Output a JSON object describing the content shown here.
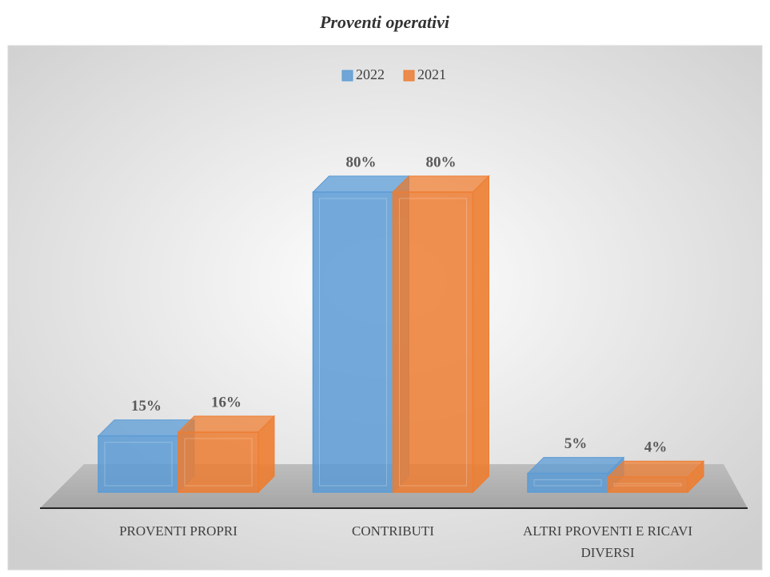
{
  "chart_data": {
    "type": "bar3d",
    "title": "Proventi operativi",
    "categories": [
      "PROVENTI PROPRI",
      "CONTRIBUTI",
      "ALTRI PROVENTI E RICAVI DIVERSI"
    ],
    "series": [
      {
        "name": "2022",
        "color": "#5b9bd5",
        "values": [
          15,
          80,
          5
        ],
        "value_labels": [
          "15%",
          "80%",
          "5%"
        ]
      },
      {
        "name": "2021",
        "color": "#ed7d31",
        "values": [
          16,
          80,
          4
        ],
        "value_labels": [
          "16%",
          "80%",
          "4%"
        ]
      }
    ],
    "legend": "top"
  }
}
